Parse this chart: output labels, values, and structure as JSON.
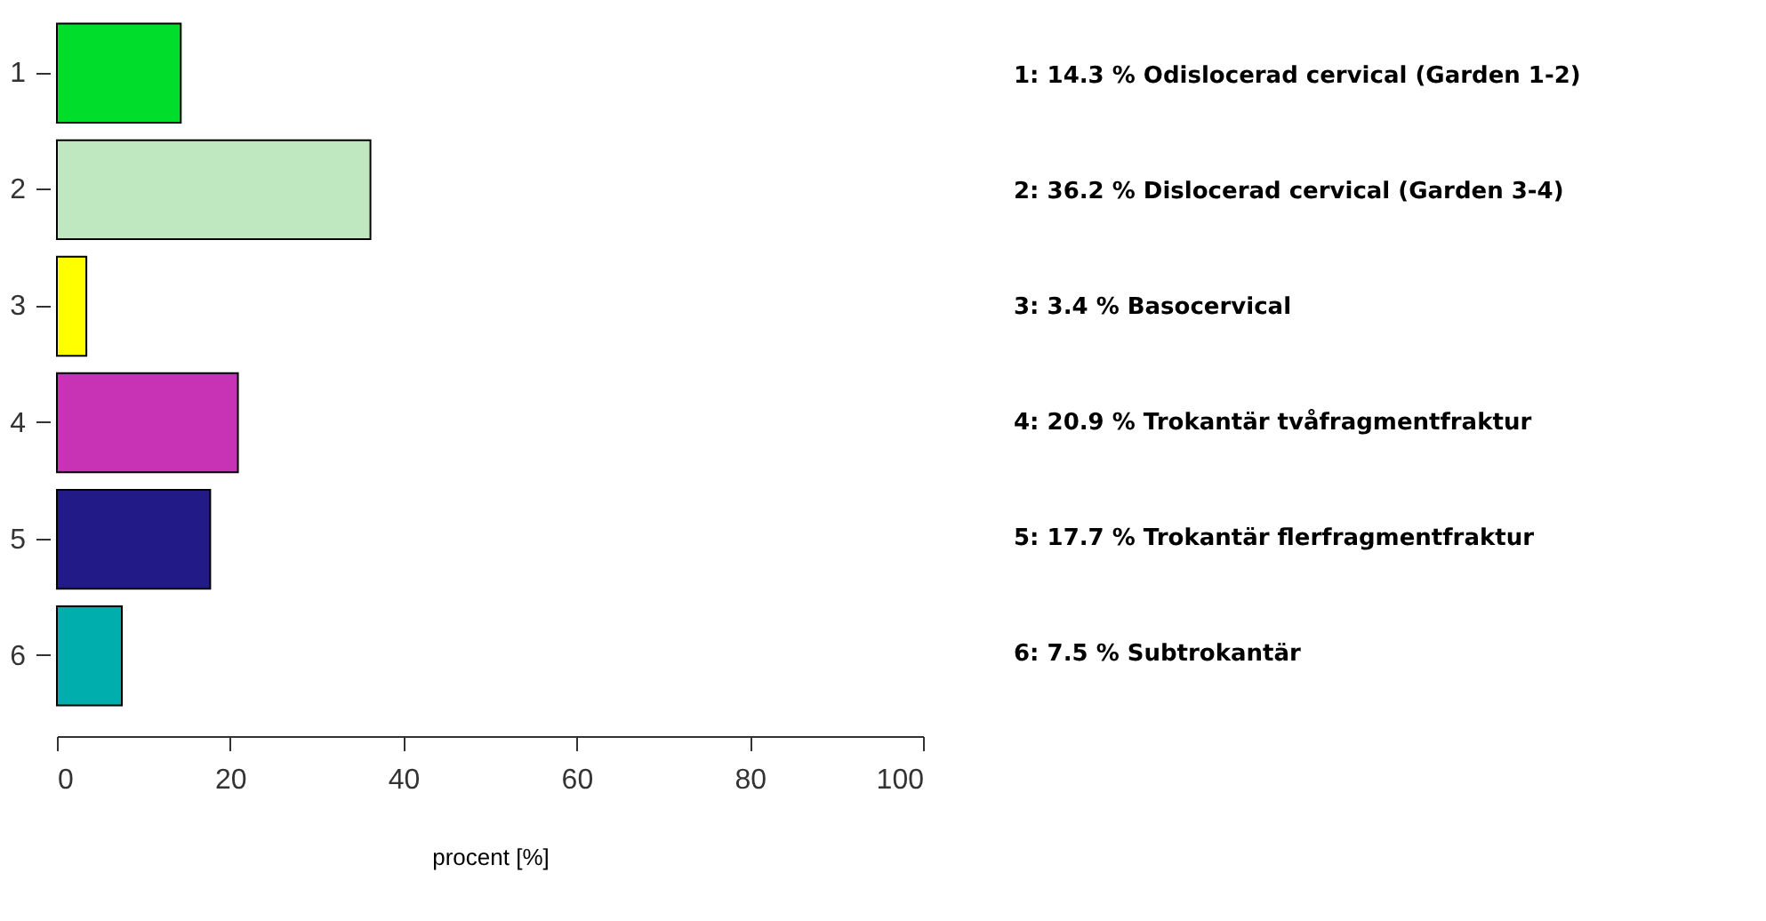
{
  "chart_data": {
    "type": "bar",
    "orientation": "horizontal",
    "xlabel": "procent [%]",
    "categories": [
      "1",
      "2",
      "3",
      "4",
      "5",
      "6"
    ],
    "values": [
      14.3,
      36.2,
      3.4,
      20.9,
      17.7,
      7.5
    ],
    "colors": [
      "#00dd2a",
      "#c0e8c0",
      "#ffff00",
      "#c832b4",
      "#221b87",
      "#00aeae"
    ],
    "xlim": [
      0,
      100
    ],
    "xticks": [
      0,
      20,
      40,
      60,
      80,
      100
    ],
    "grid": false,
    "legend": false,
    "annotations": [
      "1:  14.3 %   Odislocerad cervical (Garden 1-2)",
      "2:  36.2 %   Dislocerad cervical (Garden 3-4)",
      "3:  3.4 %     Basocervical",
      "4:  20.9 %   Trokantär tvåfragmentfraktur",
      "5:  17.7 %   Trokantär flerfragmentfraktur",
      "6:  7.5 %     Subtrokantär"
    ]
  }
}
